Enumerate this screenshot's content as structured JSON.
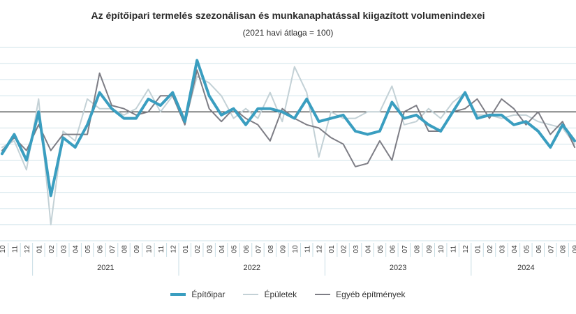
{
  "chart_data": {
    "type": "line",
    "title": "Az építőipari termelés szezonálisan és munkanaphatással kiigazított volumenindexei",
    "subtitle": "(2021 havi átlaga = 100)",
    "x": [
      "10",
      "11",
      "12",
      "01",
      "02",
      "03",
      "04",
      "05",
      "06",
      "07",
      "08",
      "09",
      "10",
      "11",
      "12",
      "01",
      "02",
      "03",
      "04",
      "05",
      "06",
      "07",
      "08",
      "09",
      "10",
      "11",
      "12",
      "01",
      "02",
      "03",
      "04",
      "05",
      "06",
      "07",
      "08",
      "09",
      "10",
      "11",
      "12",
      "01",
      "02",
      "03",
      "04",
      "05",
      "06",
      "07",
      "08",
      "09"
    ],
    "years": [
      {
        "label": "2021",
        "start": 3,
        "end": 14
      },
      {
        "label": "2022",
        "start": 15,
        "end": 26
      },
      {
        "label": "2023",
        "start": 27,
        "end": 38
      },
      {
        "label": "2024",
        "start": 39,
        "end": 47
      }
    ],
    "ylim": [
      60,
      120
    ],
    "reference_line": 100,
    "series": [
      {
        "name": "Építőipar",
        "color": "#3a9ec0",
        "width": 4,
        "values": [
          87,
          93,
          85,
          100,
          74,
          92,
          89,
          96,
          106,
          101,
          98,
          98,
          104,
          102,
          106,
          97,
          116,
          105,
          99,
          101,
          96,
          101,
          101,
          100,
          98,
          104,
          97,
          98,
          99,
          94,
          93,
          94,
          103,
          98,
          99,
          96,
          94,
          100,
          106,
          98,
          99,
          99,
          96,
          97,
          94,
          89,
          96,
          91
        ]
      },
      {
        "name": "Épületek",
        "color": "#c3d1d6",
        "width": 2,
        "values": [
          89,
          91,
          82,
          104,
          65,
          94,
          91,
          104,
          101,
          101,
          99,
          101,
          107,
          100,
          105,
          97,
          111,
          109,
          105,
          98,
          101,
          98,
          106,
          97,
          114,
          106,
          86,
          100,
          98,
          98,
          100,
          100,
          108,
          96,
          97,
          101,
          98,
          103,
          106,
          99,
          99,
          98,
          99,
          99,
          97,
          96,
          95,
          90
        ]
      },
      {
        "name": "Egyéb építmények",
        "color": "#7d7d85",
        "width": 2,
        "values": [
          88,
          92,
          88,
          96,
          88,
          93,
          93,
          93,
          112,
          102,
          101,
          99,
          100,
          105,
          105,
          96,
          113,
          101,
          97,
          101,
          98,
          96,
          91,
          101,
          98,
          96,
          95,
          92,
          90,
          83,
          84,
          91,
          85,
          100,
          102,
          94,
          94,
          100,
          101,
          104,
          98,
          104,
          101,
          96,
          100,
          93,
          97,
          89
        ]
      }
    ]
  }
}
